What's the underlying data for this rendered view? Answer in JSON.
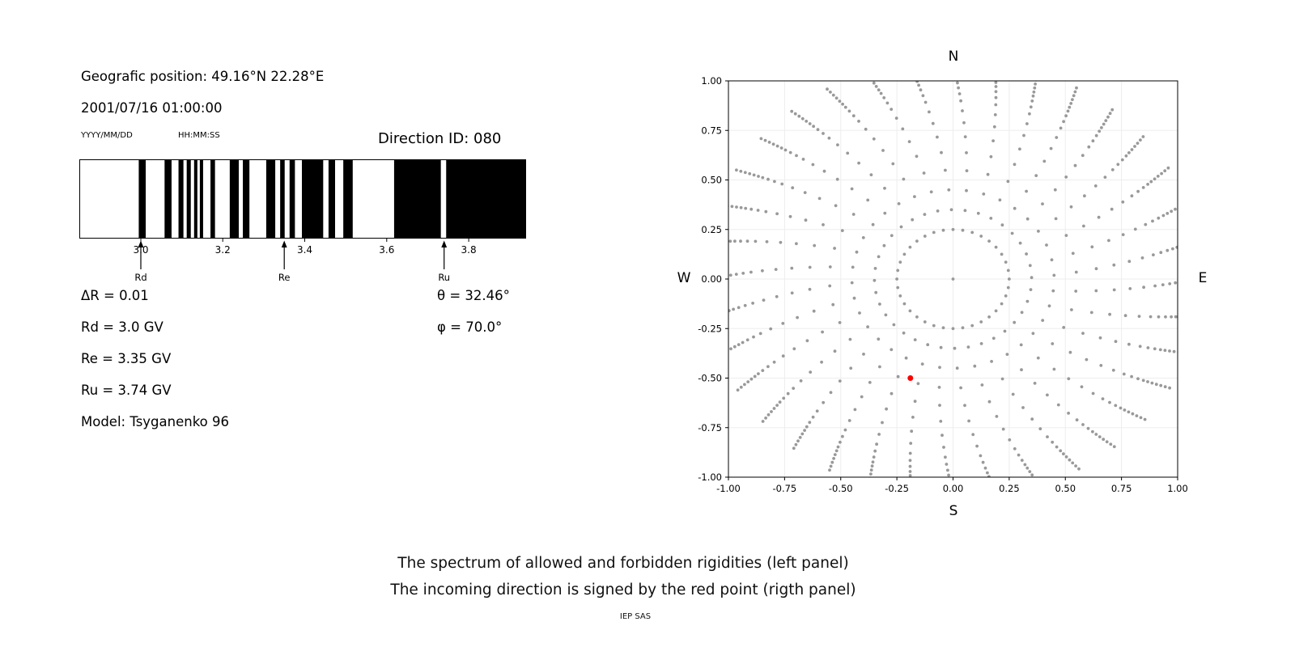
{
  "header": {
    "geo_position": "Geografic position: 49.16°N 22.28°E",
    "datetime": "2001/07/16 01:00:00",
    "date_format": "YYYY/MM/DD",
    "time_format": "HH:MM:SS",
    "direction_id": "Direction ID: 080"
  },
  "info": {
    "delta_r": "ΔR = 0.01",
    "rd": "Rd = 3.0 GV",
    "re": "Re = 3.35 GV",
    "ru": "Ru = 3.74 GV",
    "model": "Model: Tsyganenko 96",
    "theta": "θ = 32.46°",
    "phi": "φ = 70.0°"
  },
  "captions": {
    "line1": "The spectrum of allowed and forbidden rigidities (left panel)",
    "line2": "The incoming direction is signed by the red point (rigth panel)",
    "credit": "IEP SAS"
  },
  "chart_data": [
    {
      "type": "bar",
      "name": "rigidity-spectrum-barcode",
      "description": "Binary spectrum of allowed (black) and forbidden (white) rigidities in GV",
      "xlim": [
        2.85,
        3.94
      ],
      "xticks": [
        3.0,
        3.2,
        3.4,
        3.6,
        3.8
      ],
      "xtick_labels": [
        "3.0",
        "3.2",
        "3.4",
        "3.6",
        "3.8"
      ],
      "black_bands": [
        [
          2.995,
          3.012
        ],
        [
          3.058,
          3.075
        ],
        [
          3.092,
          3.104
        ],
        [
          3.112,
          3.122
        ],
        [
          3.13,
          3.138
        ],
        [
          3.144,
          3.152
        ],
        [
          3.17,
          3.181
        ],
        [
          3.217,
          3.239
        ],
        [
          3.249,
          3.265
        ],
        [
          3.306,
          3.328
        ],
        [
          3.34,
          3.351
        ],
        [
          3.363,
          3.376
        ],
        [
          3.393,
          3.445
        ],
        [
          3.458,
          3.474
        ],
        [
          3.494,
          3.517
        ],
        [
          3.618,
          3.732
        ],
        [
          3.745,
          3.94
        ]
      ],
      "markers": [
        {
          "label": "Rd",
          "x": 3.0
        },
        {
          "label": "Re",
          "x": 3.35
        },
        {
          "label": "Ru",
          "x": 3.74
        }
      ],
      "bar_color": "#000000"
    },
    {
      "type": "scatter",
      "name": "asymptotic-directions-sky-map",
      "xlim": [
        -1,
        1
      ],
      "ylim": [
        -1,
        1
      ],
      "xticks": [
        -1.0,
        -0.75,
        -0.5,
        -0.25,
        0,
        0.25,
        0.5,
        0.75,
        1.0
      ],
      "xtick_labels": [
        "-1.00",
        "-0.75",
        "-0.50",
        "-0.25",
        "0.00",
        "0.25",
        "0.50",
        "0.75",
        "1.00"
      ],
      "yticks": [
        -1.0,
        -0.75,
        -0.5,
        -0.25,
        0,
        0.25,
        0.5,
        0.75,
        1.0
      ],
      "ytick_labels": [
        "-1.00",
        "-0.75",
        "-0.50",
        "-0.25",
        "0.00",
        "0.25",
        "0.50",
        "0.75",
        "1.00"
      ],
      "compass": {
        "top": "N",
        "bottom": "S",
        "left": "W",
        "right": "E"
      },
      "grid": true,
      "grid_color": "#ededed",
      "dot_color": "#999999",
      "spokes": {
        "count": 36,
        "start_deg": 0,
        "step_deg": 10,
        "twist_deg_per_unit": 12,
        "radii": [
          0.25,
          0.35,
          0.45,
          0.55,
          0.64,
          0.72,
          0.79,
          0.85,
          0.9,
          0.935,
          0.965,
          0.99,
          1.01,
          1.03,
          1.05,
          1.07,
          1.09,
          1.11
        ]
      },
      "center_point": [
        0,
        0
      ],
      "red_point": {
        "x": -0.19,
        "y": -0.5,
        "color": "#ff0000"
      }
    }
  ]
}
